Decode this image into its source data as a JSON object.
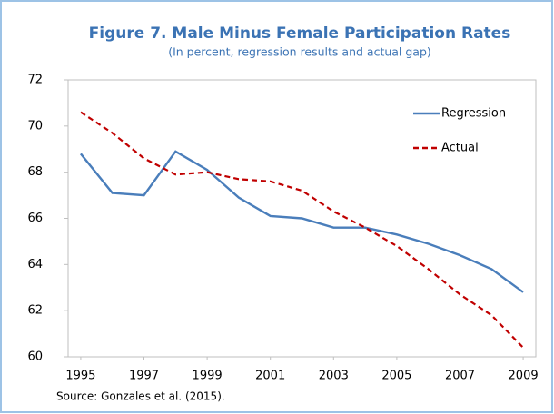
{
  "chart_data": {
    "type": "line",
    "title": "Figure 7. Male Minus Female Participation Rates",
    "subtitle": "(In percent, regression results and actual gap)",
    "source": "Source: Gonzales et al. (2015).",
    "x": [
      1995,
      1996,
      1997,
      1998,
      1999,
      2000,
      2001,
      2002,
      2003,
      2004,
      2005,
      2006,
      2007,
      2008,
      2009
    ],
    "series": [
      {
        "name": "Regression",
        "color": "#4a7ebb",
        "dash": false,
        "values": [
          68.8,
          67.1,
          67.0,
          68.9,
          68.1,
          66.9,
          66.1,
          66.0,
          65.6,
          65.6,
          65.3,
          64.9,
          64.4,
          63.8,
          62.8
        ]
      },
      {
        "name": "Actual",
        "color": "#c00000",
        "dash": true,
        "values": [
          70.6,
          69.7,
          68.6,
          67.9,
          68.0,
          67.7,
          67.6,
          67.2,
          66.3,
          65.6,
          64.8,
          63.8,
          62.7,
          61.8,
          60.4
        ]
      }
    ],
    "xlim": [
      1994.6,
      2009.4
    ],
    "xticks": [
      1995,
      1997,
      1999,
      2001,
      2003,
      2005,
      2007,
      2009
    ],
    "ylim": [
      60,
      72
    ],
    "yticks": [
      60,
      62,
      64,
      66,
      68,
      70,
      72
    ],
    "legend": "upper right"
  }
}
